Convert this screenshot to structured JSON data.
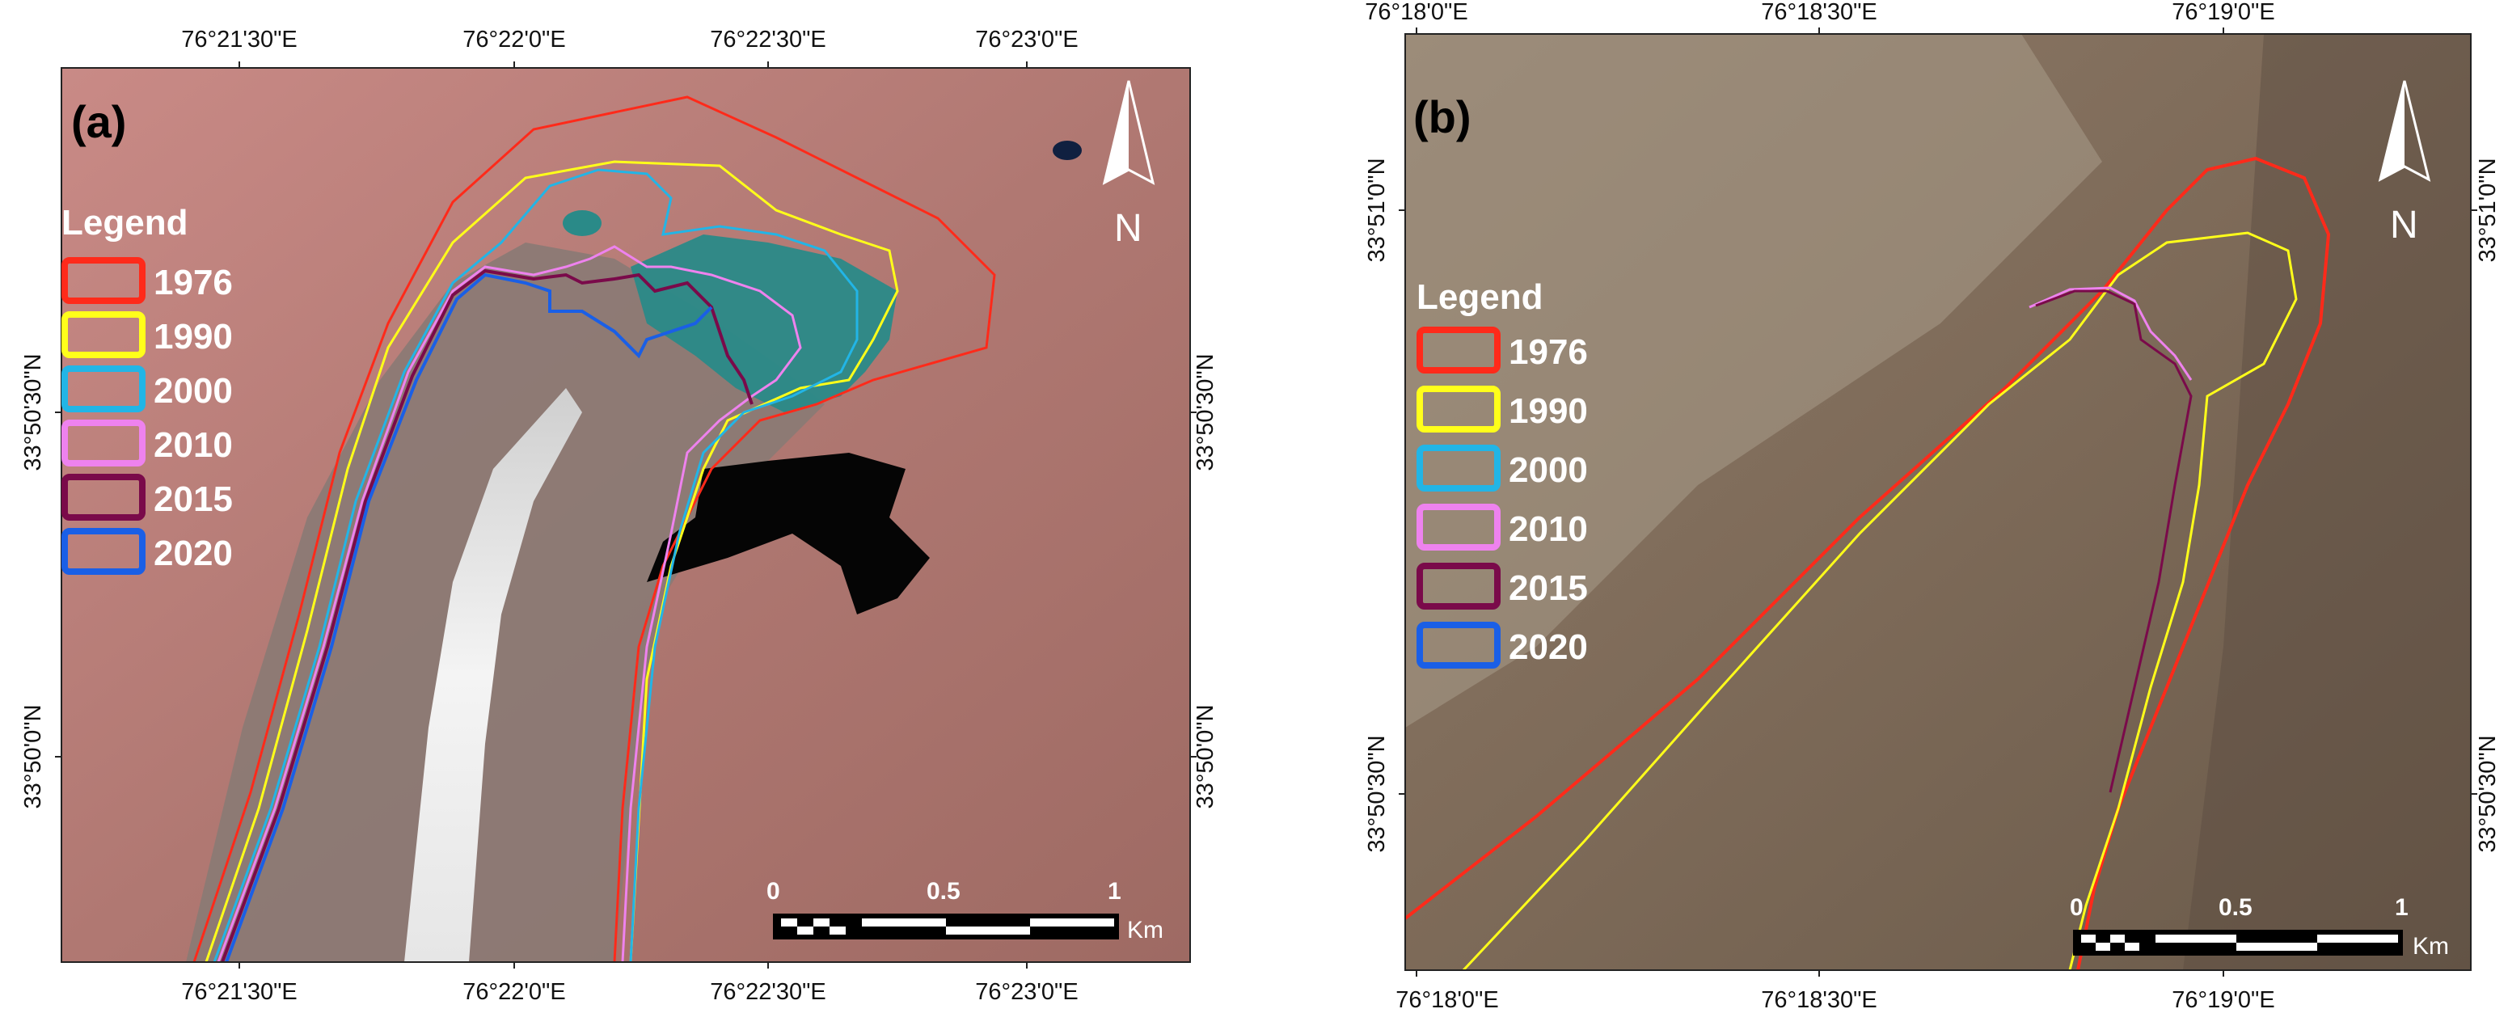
{
  "panels": [
    {
      "id": "a",
      "label": "(a)",
      "legend_title": "Legend",
      "legend": [
        {
          "year": "1976",
          "color": "#ff2a1a"
        },
        {
          "year": "1990",
          "color": "#ffff1a"
        },
        {
          "year": "2000",
          "color": "#22b5e6"
        },
        {
          "year": "2010",
          "color": "#ee82ee"
        },
        {
          "year": "2015",
          "color": "#7a0a4a"
        },
        {
          "year": "2020",
          "color": "#1a5fe6"
        }
      ],
      "top_ticks": [
        "76°21'30\"E",
        "76°22'0\"E",
        "76°22'30\"E",
        "76°23'0\"E"
      ],
      "bottom_ticks": [
        "76°21'30\"E",
        "76°22'0\"E",
        "76°22'30\"E",
        "76°23'0\"E"
      ],
      "left_ticks": [
        "33°50'30\"N",
        "33°50'0\"N"
      ],
      "right_ticks": [
        "33°50'30\"N",
        "33°50'0\"N"
      ],
      "scale_labels": [
        "0",
        "0.5",
        "1"
      ],
      "scale_unit": "Km",
      "north": "N"
    },
    {
      "id": "b",
      "label": "(b)",
      "legend_title": "Legend",
      "legend": [
        {
          "year": "1976",
          "color": "#ff2a1a"
        },
        {
          "year": "1990",
          "color": "#ffff1a"
        },
        {
          "year": "2000",
          "color": "#22b5e6"
        },
        {
          "year": "2010",
          "color": "#ee82ee"
        },
        {
          "year": "2015",
          "color": "#7a0a4a"
        },
        {
          "year": "2020",
          "color": "#1a5fe6"
        }
      ],
      "top_ticks": [
        "76°18'0\"E",
        "76°18'30\"E",
        "76°19'0\"E"
      ],
      "bottom_ticks": [
        "76°18'0\"E",
        "76°18'30\"E",
        "76°19'0\"E"
      ],
      "left_ticks": [
        "33°51'0\"N",
        "33°50'30\"N"
      ],
      "right_ticks": [
        "33°51'0\"N",
        "33°50'30\"N"
      ],
      "scale_labels": [
        "0",
        "0.5",
        "1"
      ],
      "scale_unit": "Km",
      "north": "N"
    }
  ]
}
